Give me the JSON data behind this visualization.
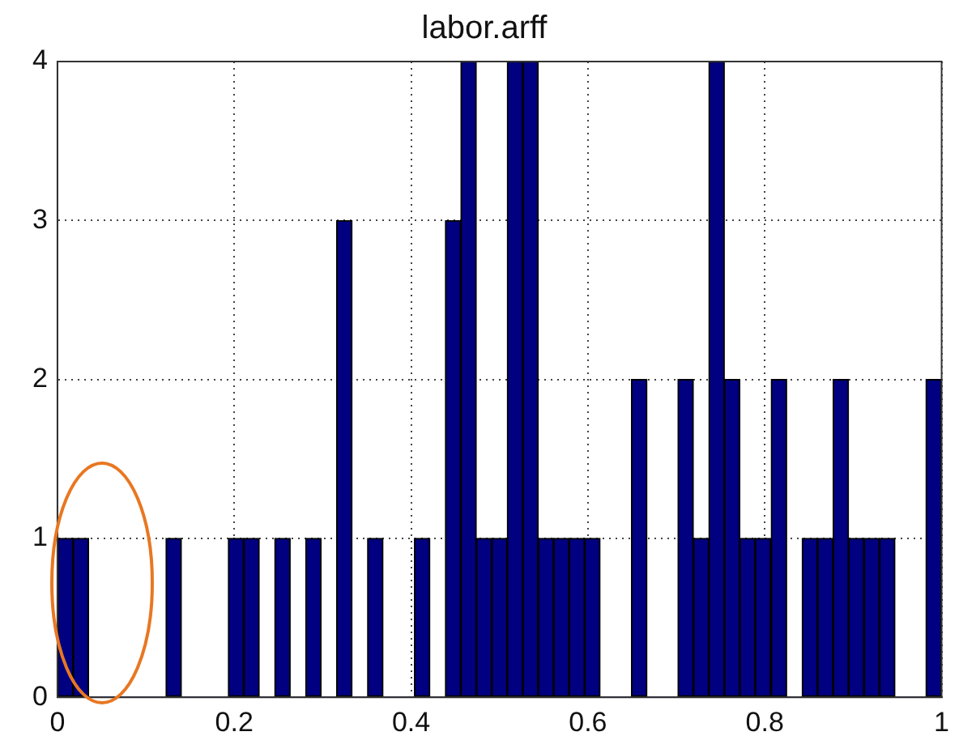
{
  "chart_data": {
    "type": "histogram",
    "title": "labor.arff",
    "bins": [
      0,
      0.018,
      0.035,
      0.053,
      0.07,
      0.088,
      0.105,
      0.123,
      0.14,
      0.158,
      0.175,
      0.193,
      0.211,
      0.228,
      0.246,
      0.263,
      0.281,
      0.298,
      0.316,
      0.333,
      0.351,
      0.368,
      0.386,
      0.404,
      0.421,
      0.439,
      0.456,
      0.474,
      0.491,
      0.509,
      0.526,
      0.544,
      0.561,
      0.579,
      0.596,
      0.614,
      0.632,
      0.649,
      0.667,
      0.684,
      0.702,
      0.719,
      0.737,
      0.754,
      0.772,
      0.789,
      0.807,
      0.825,
      0.842,
      0.86,
      0.877,
      0.895,
      0.912,
      0.93,
      0.947,
      0.965,
      0.982,
      1
    ],
    "values": [
      1,
      1,
      0,
      0,
      0,
      0,
      0,
      1,
      0,
      0,
      0,
      1,
      1,
      0,
      1,
      0,
      1,
      0,
      3,
      0,
      1,
      0,
      0,
      1,
      0,
      3,
      4,
      1,
      1,
      4,
      4,
      1,
      1,
      1,
      1,
      0,
      0,
      2,
      0,
      0,
      2,
      1,
      4,
      2,
      1,
      1,
      2,
      0,
      1,
      1,
      2,
      1,
      1,
      1,
      0,
      0,
      2
    ],
    "color": "#000080",
    "xlim": [
      0,
      1
    ],
    "xticks": [
      0,
      0.2,
      0.4,
      0.6,
      0.8,
      1
    ],
    "ylim": [
      0,
      4
    ],
    "yticks": [
      0,
      1,
      2,
      3,
      4
    ],
    "grid": true,
    "legend": false
  }
}
